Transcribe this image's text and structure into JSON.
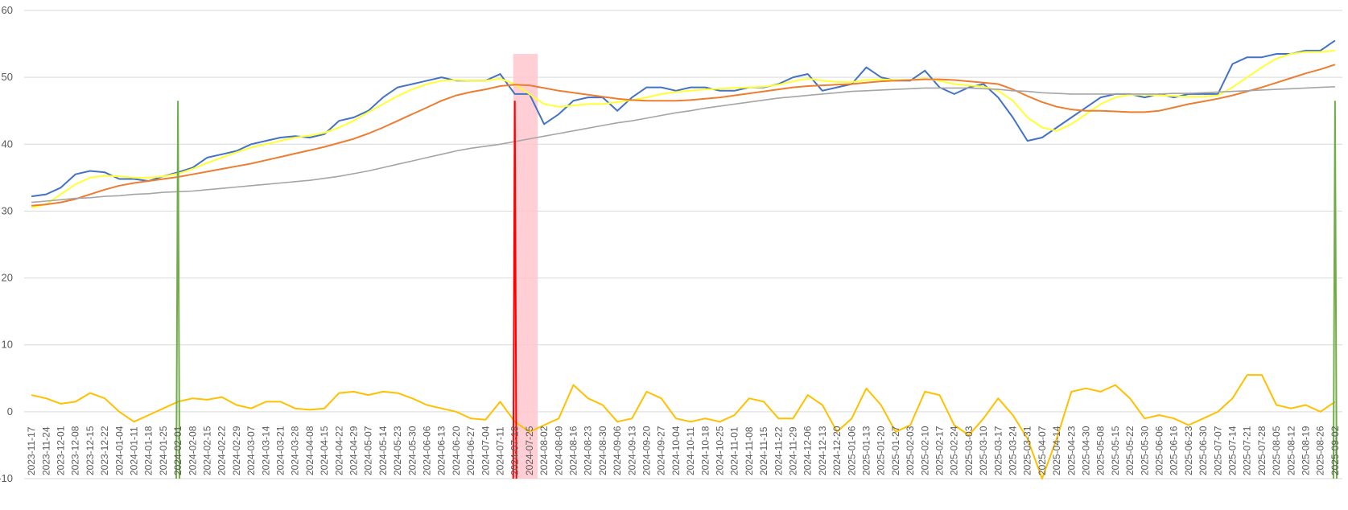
{
  "chart_data": {
    "type": "line",
    "title": "",
    "xlabel": "",
    "ylabel": "",
    "ylim": [
      -10,
      60
    ],
    "yticks": [
      -10,
      0,
      10,
      20,
      30,
      40,
      50,
      60
    ],
    "grid": true,
    "legend": "none",
    "x_labels": [
      "2023-11-17",
      "2023-11-24",
      "2023-12-01",
      "2023-12-08",
      "2023-12-15",
      "2023-12-22",
      "2024-01-04",
      "2024-01-11",
      "2024-01-18",
      "2024-01-25",
      "2024-02-01",
      "2024-02-08",
      "2024-02-15",
      "2024-02-22",
      "2024-02-29",
      "2024-03-07",
      "2024-03-14",
      "2024-03-21",
      "2024-03-28",
      "2024-04-08",
      "2024-04-15",
      "2024-04-22",
      "2024-04-29",
      "2024-05-07",
      "2024-05-14",
      "2024-05-23",
      "2024-05-30",
      "2024-06-06",
      "2024-06-13",
      "2024-06-20",
      "2024-06-27",
      "2024-07-04",
      "2024-07-11",
      "2024-07-18",
      "2024-07-25",
      "2024-08-02",
      "2024-08-09",
      "2024-08-16",
      "2024-08-23",
      "2024-08-30",
      "2024-09-06",
      "2024-09-13",
      "2024-09-20",
      "2024-09-27",
      "2024-10-04",
      "2024-10-11",
      "2024-10-18",
      "2024-10-25",
      "2024-11-01",
      "2024-11-08",
      "2024-11-15",
      "2024-11-22",
      "2024-11-29",
      "2024-12-06",
      "2024-12-13",
      "2024-12-20",
      "2025-01-06",
      "2025-01-13",
      "2025-01-20",
      "2025-01-27",
      "2025-02-03",
      "2025-02-10",
      "2025-02-17",
      "2025-02-24",
      "2025-03-03",
      "2025-03-10",
      "2025-03-17",
      "2025-03-24",
      "2025-03-31",
      "2025-04-07",
      "2025-04-14",
      "2025-04-23",
      "2025-04-30",
      "2025-05-08",
      "2025-05-15",
      "2025-05-22",
      "2025-05-30",
      "2025-06-06",
      "2025-06-16",
      "2025-06-23",
      "2025-06-30",
      "2025-07-07",
      "2025-07-14",
      "2025-07-21",
      "2025-07-28",
      "2025-08-05",
      "2025-08-12",
      "2025-08-19",
      "2025-08-26",
      "2025-09-02"
    ],
    "colors": {
      "price": "#4472C4",
      "fast_ma": "#FFFF33",
      "slow_ma": "#ED7D31",
      "long_ma": "#A5A5A5",
      "oscillator": "#FFC000",
      "buy_signal": "#70AD47",
      "sell_signal": "#FF0000",
      "highlight": "#FFC7CE",
      "grid": "#D9D9D9"
    },
    "series": [
      {
        "key": "price",
        "values": [
          32.2,
          32.5,
          33.5,
          35.5,
          36,
          35.8,
          34.8,
          34.8,
          34.5,
          35.2,
          35.8,
          36.5,
          38,
          38.5,
          39,
          40,
          40.5,
          41,
          41.2,
          41,
          41.5,
          43.5,
          44,
          45,
          47,
          48.5,
          49,
          49.5,
          50,
          49.5,
          49.5,
          49.5,
          50.5,
          47.5,
          47.5,
          43,
          44.5,
          46.5,
          47,
          47,
          45,
          47,
          48.5,
          48.5,
          48,
          48.5,
          48.5,
          48,
          48,
          48.5,
          48.5,
          49,
          50,
          50.5,
          48,
          48.5,
          49,
          51.5,
          50,
          49.5,
          49.5,
          51,
          48.5,
          47.5,
          48.5,
          49,
          47,
          44,
          40.5,
          41,
          42.5,
          44,
          45.5,
          47,
          47.5,
          47.5,
          47,
          47.5,
          47,
          47.5,
          47.5,
          47.5,
          52,
          53,
          53,
          53.5,
          53.5,
          54,
          54,
          55.5
        ]
      },
      {
        "key": "fast_ma",
        "values": [
          30.5,
          31,
          32.5,
          34,
          35,
          35.3,
          35.2,
          35,
          35,
          35.2,
          35.6,
          36.3,
          37.2,
          38,
          38.8,
          39.5,
          40,
          40.5,
          41,
          41.3,
          41.7,
          42.5,
          43.5,
          44.8,
          46,
          47.2,
          48.2,
          49,
          49.5,
          49.6,
          49.5,
          49.5,
          49.8,
          49,
          47.5,
          46,
          45.6,
          45.8,
          46,
          46,
          46.3,
          46.6,
          47,
          47.5,
          47.8,
          48,
          48.2,
          48.3,
          48.4,
          48.5,
          48.6,
          48.9,
          49.4,
          49.8,
          49.5,
          49.3,
          49.3,
          49.6,
          49.7,
          49.6,
          49.6,
          49.8,
          49.5,
          49,
          48.8,
          48.6,
          48,
          46.5,
          44,
          42.5,
          42,
          43,
          44.5,
          46,
          47,
          47.4,
          47.4,
          47.3,
          47.2,
          47.1,
          47.1,
          47.3,
          48.5,
          50,
          51.5,
          52.8,
          53.5,
          53.8,
          53.8,
          54
        ]
      },
      {
        "key": "slow_ma",
        "values": [
          30.8,
          31,
          31.3,
          31.8,
          32.5,
          33.2,
          33.8,
          34.2,
          34.5,
          34.8,
          35.1,
          35.5,
          35.9,
          36.3,
          36.7,
          37.1,
          37.6,
          38.1,
          38.6,
          39.1,
          39.6,
          40.2,
          40.8,
          41.6,
          42.5,
          43.5,
          44.5,
          45.5,
          46.5,
          47.3,
          47.8,
          48.2,
          48.7,
          48.9,
          48.8,
          48.4,
          48,
          47.7,
          47.4,
          47.1,
          46.8,
          46.6,
          46.5,
          46.5,
          46.5,
          46.6,
          46.8,
          47,
          47.3,
          47.6,
          47.9,
          48.2,
          48.5,
          48.7,
          48.8,
          48.9,
          49,
          49.2,
          49.4,
          49.5,
          49.6,
          49.7,
          49.7,
          49.6,
          49.4,
          49.2,
          49,
          48.2,
          47.2,
          46.3,
          45.6,
          45.2,
          45,
          45,
          44.9,
          44.8,
          44.8,
          45,
          45.5,
          46,
          46.4,
          46.8,
          47.3,
          47.9,
          48.5,
          49.2,
          49.9,
          50.6,
          51.2,
          51.9
        ]
      },
      {
        "key": "long_ma",
        "values": [
          31.3,
          31.5,
          31.7,
          31.9,
          32,
          32.2,
          32.3,
          32.5,
          32.6,
          32.8,
          32.9,
          33,
          33.2,
          33.4,
          33.6,
          33.8,
          34,
          34.2,
          34.4,
          34.6,
          34.9,
          35.2,
          35.6,
          36,
          36.5,
          37,
          37.5,
          38,
          38.5,
          39,
          39.4,
          39.7,
          40,
          40.4,
          40.8,
          41.2,
          41.6,
          42,
          42.4,
          42.8,
          43.2,
          43.5,
          43.9,
          44.3,
          44.7,
          45,
          45.4,
          45.7,
          46,
          46.3,
          46.6,
          46.9,
          47.1,
          47.3,
          47.5,
          47.7,
          47.9,
          48,
          48.1,
          48.2,
          48.3,
          48.4,
          48.4,
          48.4,
          48.4,
          48.3,
          48.2,
          48,
          47.9,
          47.7,
          47.6,
          47.5,
          47.5,
          47.5,
          47.5,
          47.5,
          47.5,
          47.5,
          47.6,
          47.6,
          47.7,
          47.8,
          47.9,
          48,
          48.1,
          48.2,
          48.3,
          48.4,
          48.5,
          48.6
        ]
      },
      {
        "key": "oscillator",
        "values": [
          2.5,
          2,
          1.2,
          1.5,
          2.8,
          2,
          0,
          -1.5,
          -0.5,
          0.5,
          1.5,
          2,
          1.8,
          2.2,
          1,
          0.5,
          1.5,
          1.5,
          0.5,
          0.3,
          0.5,
          2.8,
          3,
          2.5,
          3,
          2.8,
          2,
          1,
          0.5,
          0,
          -1,
          -1.2,
          1.5,
          -1.5,
          -3,
          -2,
          -1,
          4,
          2,
          1,
          -1.5,
          -1,
          3,
          2,
          -1,
          -1.5,
          -1,
          -1.5,
          -0.5,
          2,
          1.5,
          -1,
          -1,
          2.5,
          1,
          -3,
          -1,
          3.5,
          1,
          -3,
          -2,
          3,
          2.5,
          -2,
          -3.5,
          -1,
          2,
          -0.5,
          -4,
          -10,
          -4,
          3,
          3.5,
          3,
          4,
          2,
          -1,
          -0.5,
          -1,
          -2,
          -1,
          0,
          2,
          5.5,
          5.5,
          1,
          0.5,
          1,
          0,
          1.5
        ]
      }
    ],
    "signals": [
      {
        "type": "buy",
        "x_index": 10,
        "top": 46.5
      },
      {
        "type": "sell",
        "x_index": 33,
        "top": 46.5
      },
      {
        "type": "buy",
        "x_index": 89,
        "top": 46.5
      }
    ],
    "highlight_band": {
      "x_from_index": 33,
      "x_to_index": 35,
      "y_from": -10,
      "y_to": 53.5
    }
  }
}
